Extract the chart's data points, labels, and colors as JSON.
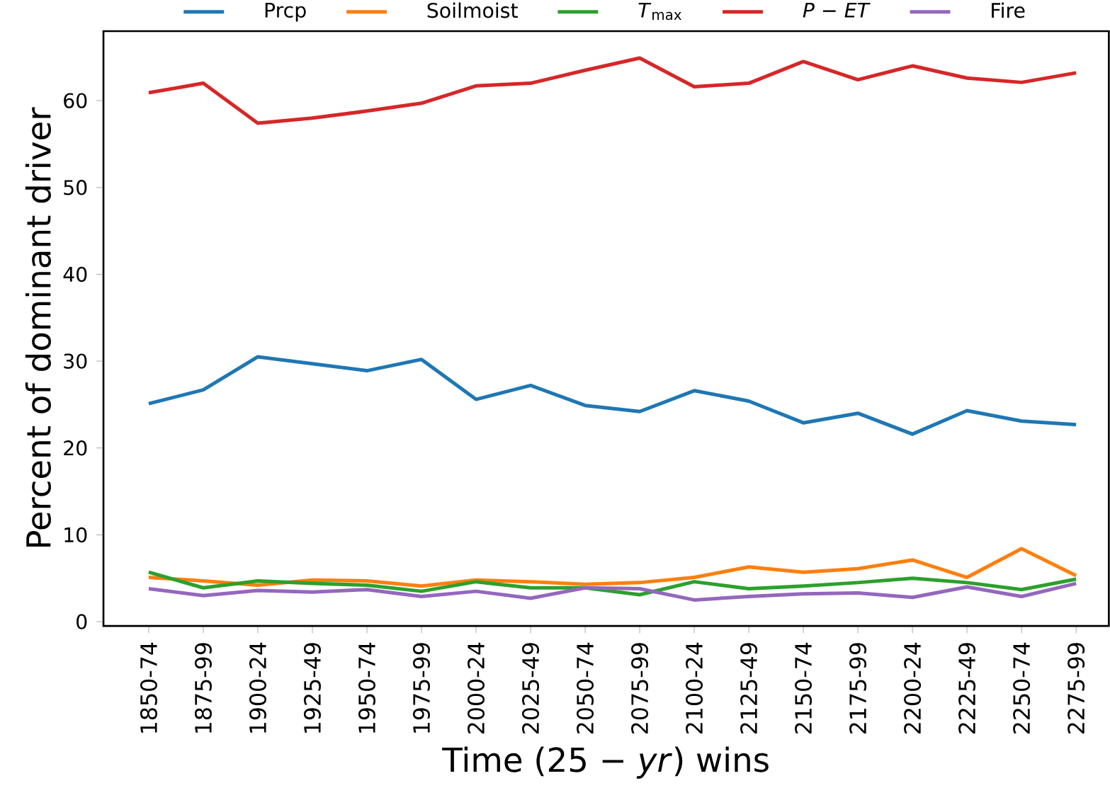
{
  "chart_data": {
    "type": "line",
    "xlabel": "Time (25 − *yr*) wins",
    "ylabel": "Percent of dominant driver",
    "categories": [
      "1850-74",
      "1875-99",
      "1900-24",
      "1925-49",
      "1950-74",
      "1975-99",
      "2000-24",
      "2025-49",
      "2050-74",
      "2075-99",
      "2100-24",
      "2125-49",
      "2150-74",
      "2175-99",
      "2200-24",
      "2225-49",
      "2250-74",
      "2275-99"
    ],
    "series": [
      {
        "name": "Prcp",
        "color": "#1f77b4",
        "values": [
          25.1,
          26.7,
          30.5,
          29.7,
          28.9,
          30.2,
          25.6,
          27.2,
          24.9,
          24.2,
          26.6,
          25.4,
          22.9,
          24.0,
          21.6,
          24.3,
          23.1,
          22.7
        ]
      },
      {
        "name": "Soilmoist",
        "color": "#ff7f0e",
        "values": [
          5.1,
          4.7,
          4.2,
          4.8,
          4.7,
          4.1,
          4.8,
          4.6,
          4.3,
          4.5,
          5.1,
          6.3,
          5.7,
          6.1,
          7.1,
          5.1,
          8.4,
          5.3
        ]
      },
      {
        "name": "*T*$_{max}$",
        "color": "#2ca02c",
        "values": [
          5.7,
          3.9,
          4.7,
          4.4,
          4.2,
          3.5,
          4.6,
          3.9,
          3.9,
          3.1,
          4.6,
          3.8,
          4.1,
          4.5,
          5.0,
          4.5,
          3.7,
          4.9
        ]
      },
      {
        "name": "*P* − *ET*",
        "color": "#d62728",
        "values": [
          60.9,
          62.0,
          57.4,
          58.0,
          58.8,
          59.7,
          61.7,
          62.0,
          63.5,
          64.9,
          61.6,
          62.0,
          64.5,
          62.4,
          64.0,
          62.6,
          62.1,
          63.2
        ]
      },
      {
        "name": "Fire",
        "color": "#9467bd",
        "values": [
          3.8,
          3.0,
          3.6,
          3.4,
          3.7,
          2.9,
          3.5,
          2.7,
          3.9,
          3.8,
          2.5,
          2.9,
          3.2,
          3.3,
          2.8,
          4.0,
          2.9,
          4.4
        ]
      }
    ],
    "ylim": [
      -0.5,
      68
    ],
    "yticks": [
      0,
      10,
      20,
      30,
      40,
      50,
      60
    ],
    "legend": "top",
    "marker": "none",
    "line_style": "solid"
  }
}
